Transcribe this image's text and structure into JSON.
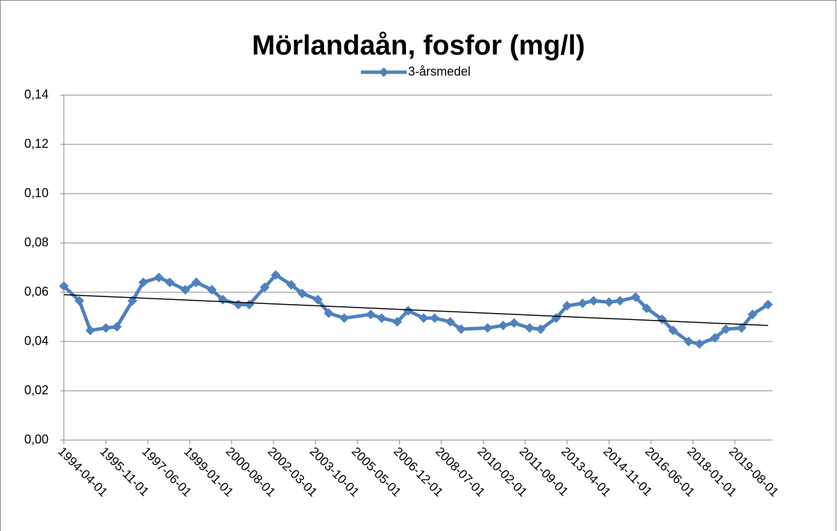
{
  "chart_data": {
    "type": "line",
    "title": "Mörlandaån, fosfor (mg/l)",
    "x": [
      "1994-04-01",
      "1994-11-01",
      "1995-04-01",
      "1995-11-01",
      "1996-04-01",
      "1996-11-01",
      "1997-04-01",
      "1997-11-01",
      "1998-04-01",
      "1998-11-01",
      "1999-04-01",
      "1999-11-01",
      "2000-04-01",
      "2000-11-01",
      "2001-04-01",
      "2001-11-01",
      "2002-04-01",
      "2002-11-01",
      "2003-04-01",
      "2003-11-01",
      "2004-04-01",
      "2004-11-01",
      "2005-11-01",
      "2006-04-01",
      "2006-11-01",
      "2007-04-01",
      "2007-11-01",
      "2008-04-01",
      "2008-11-01",
      "2009-04-01",
      "2010-04-01",
      "2010-11-01",
      "2011-04-01",
      "2011-11-01",
      "2012-04-01",
      "2012-11-01",
      "2013-04-01",
      "2013-11-01",
      "2014-04-01",
      "2014-11-01",
      "2015-04-01",
      "2015-11-01",
      "2016-04-01",
      "2016-11-01",
      "2017-04-01",
      "2017-11-01",
      "2018-04-01",
      "2018-11-01",
      "2019-04-01",
      "2019-11-01",
      "2020-04-01",
      "2020-11-01"
    ],
    "series": [
      {
        "name": "3-årsmedel",
        "color": "#4f81bd",
        "values": [
          0.0625,
          0.0565,
          0.0445,
          0.0455,
          0.046,
          0.0565,
          0.064,
          0.066,
          0.064,
          0.061,
          0.064,
          0.061,
          0.057,
          0.055,
          0.055,
          0.062,
          0.067,
          0.063,
          0.0595,
          0.057,
          0.0515,
          0.0495,
          0.051,
          0.0495,
          0.048,
          0.0525,
          0.0495,
          0.0495,
          0.048,
          0.045,
          0.0455,
          0.0465,
          0.0475,
          0.0455,
          0.045,
          0.0495,
          0.0545,
          0.0555,
          0.0565,
          0.056,
          0.0565,
          0.058,
          0.0535,
          0.049,
          0.0445,
          0.04,
          0.039,
          0.0415,
          0.045,
          0.0455,
          0.051,
          0.055
        ]
      }
    ],
    "trend": {
      "x": [
        "1994-04-01",
        "2020-11-01"
      ],
      "values": [
        0.059,
        0.0465
      ],
      "color": "#000000"
    },
    "xlim": [
      "1994-04-01",
      "2021-01-01"
    ],
    "xticks": [
      "1994-04-01",
      "1995-11-01",
      "1997-06-01",
      "1999-01-01",
      "2000-08-01",
      "2002-03-01",
      "2003-10-01",
      "2005-05-01",
      "2006-12-01",
      "2008-07-01",
      "2010-02-01",
      "2011-09-01",
      "2013-04-01",
      "2014-11-01",
      "2016-06-01",
      "2018-01-01",
      "2019-08-01"
    ],
    "ylim": [
      0,
      0.14
    ],
    "yticks": [
      {
        "value": 0,
        "label": "0,00"
      },
      {
        "value": 0.02,
        "label": "0,02"
      },
      {
        "value": 0.04,
        "label": "0,04"
      },
      {
        "value": 0.06,
        "label": "0,06"
      },
      {
        "value": 0.08,
        "label": "0,08"
      },
      {
        "value": 0.1,
        "label": "0,10"
      },
      {
        "value": 0.12,
        "label": "0,12"
      },
      {
        "value": 0.14,
        "label": "0,14"
      }
    ],
    "grid": true,
    "legend": "top"
  }
}
